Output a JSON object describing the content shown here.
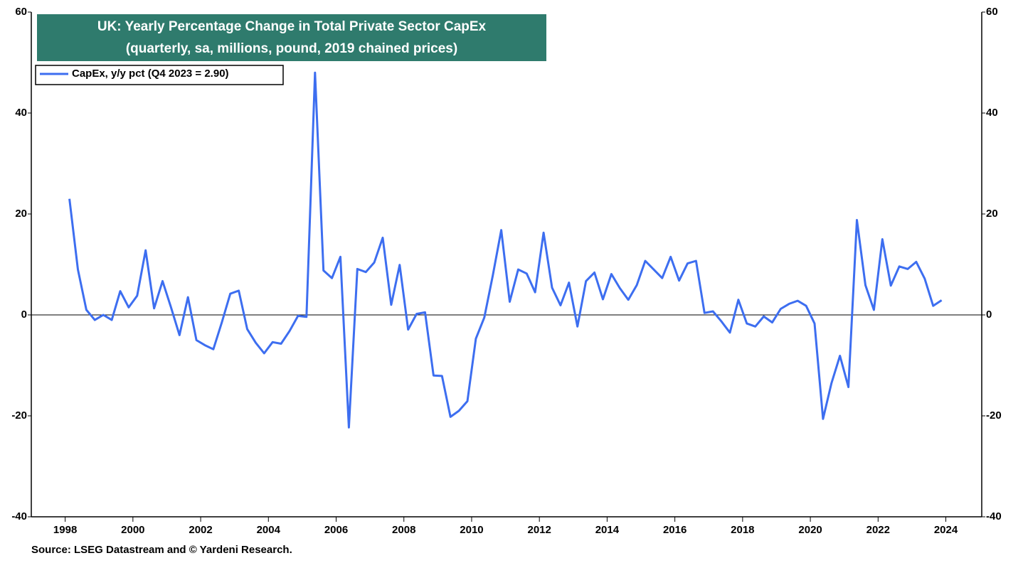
{
  "chart_data": {
    "type": "line",
    "title": "UK: Yearly Percentage Change in Total Private Sector CapEx",
    "subtitle": "(quarterly, sa, millions, pound, 2019 chained prices)",
    "source": "Source: LSEG Datastream and © Yardeni Research.",
    "x": [
      1998.125,
      1998.375,
      1998.625,
      1998.875,
      1999.125,
      1999.375,
      1999.625,
      1999.875,
      2000.125,
      2000.375,
      2000.625,
      2000.875,
      2001.125,
      2001.375,
      2001.625,
      2001.875,
      2002.125,
      2002.375,
      2002.625,
      2002.875,
      2003.125,
      2003.375,
      2003.625,
      2003.875,
      2004.125,
      2004.375,
      2004.625,
      2004.875,
      2005.125,
      2005.375,
      2005.625,
      2005.875,
      2006.125,
      2006.375,
      2006.625,
      2006.875,
      2007.125,
      2007.375,
      2007.625,
      2007.875,
      2008.125,
      2008.375,
      2008.625,
      2008.875,
      2009.125,
      2009.375,
      2009.625,
      2009.875,
      2010.125,
      2010.375,
      2010.625,
      2010.875,
      2011.125,
      2011.375,
      2011.625,
      2011.875,
      2012.125,
      2012.375,
      2012.625,
      2012.875,
      2013.125,
      2013.375,
      2013.625,
      2013.875,
      2014.125,
      2014.375,
      2014.625,
      2014.875,
      2015.125,
      2015.375,
      2015.625,
      2015.875,
      2016.125,
      2016.375,
      2016.625,
      2016.875,
      2017.125,
      2017.375,
      2017.625,
      2017.875,
      2018.125,
      2018.375,
      2018.625,
      2018.875,
      2019.125,
      2019.375,
      2019.625,
      2019.875,
      2020.125,
      2020.375,
      2020.625,
      2020.875,
      2021.125,
      2021.375,
      2021.625,
      2021.875,
      2022.125,
      2022.375,
      2022.625,
      2022.875,
      2023.125,
      2023.375,
      2023.625,
      2023.875
    ],
    "series": [
      {
        "name": "CapEx, y/y pct (Q4 2023 = 2.90)",
        "color": "#3d6ef0",
        "values": [
          23,
          9,
          1,
          -1,
          0,
          -1,
          4.7,
          1.5,
          3.8,
          12.8,
          1.3,
          6.7,
          1.5,
          -4,
          3.5,
          -5,
          -6,
          -6.8,
          -1.5,
          4.2,
          4.8,
          -2.8,
          -5.5,
          -7.6,
          -5.4,
          -5.7,
          -3.2,
          -0.2,
          -0.4,
          48,
          8.8,
          7.3,
          11.5,
          -22.3,
          9.1,
          8.5,
          10.4,
          15.3,
          2,
          9.9,
          -2.9,
          0.2,
          0.5,
          -12,
          -12.1,
          -20.2,
          -19,
          -17.1,
          -4.7,
          -0.5,
          7.8,
          16.8,
          2.6,
          9,
          8.2,
          4.5,
          16.3,
          5.4,
          1.9,
          6.4,
          -2.3,
          6.7,
          8.4,
          3.1,
          8.1,
          5.3,
          3,
          5.9,
          10.7,
          9,
          7.3,
          11.5,
          6.8,
          10.2,
          10.7,
          0.4,
          0.7,
          -1.3,
          -3.5,
          3,
          -1.7,
          -2.3,
          -0.3,
          -1.5,
          1.2,
          2.2,
          2.8,
          1.8,
          -1.7,
          -20.6,
          -13.5,
          -8.1,
          -14.3,
          18.8,
          5.9,
          1,
          15,
          5.8,
          9.6,
          9.1,
          10.5,
          7.2,
          1.8,
          2.9
        ]
      }
    ],
    "xlim": [
      1997,
      2025.06
    ],
    "xticks": [
      1998,
      2000,
      2002,
      2004,
      2006,
      2008,
      2010,
      2012,
      2014,
      2016,
      2018,
      2020,
      2022,
      2024
    ],
    "ylim": [
      -40,
      60
    ],
    "yticks": [
      -40,
      -20,
      0,
      20,
      40,
      60
    ],
    "y2lim": [
      -40,
      60
    ],
    "y2ticks": [
      -40,
      -20,
      0,
      20,
      40,
      60
    ],
    "title_color": "#2f7b6d",
    "grid": false
  }
}
